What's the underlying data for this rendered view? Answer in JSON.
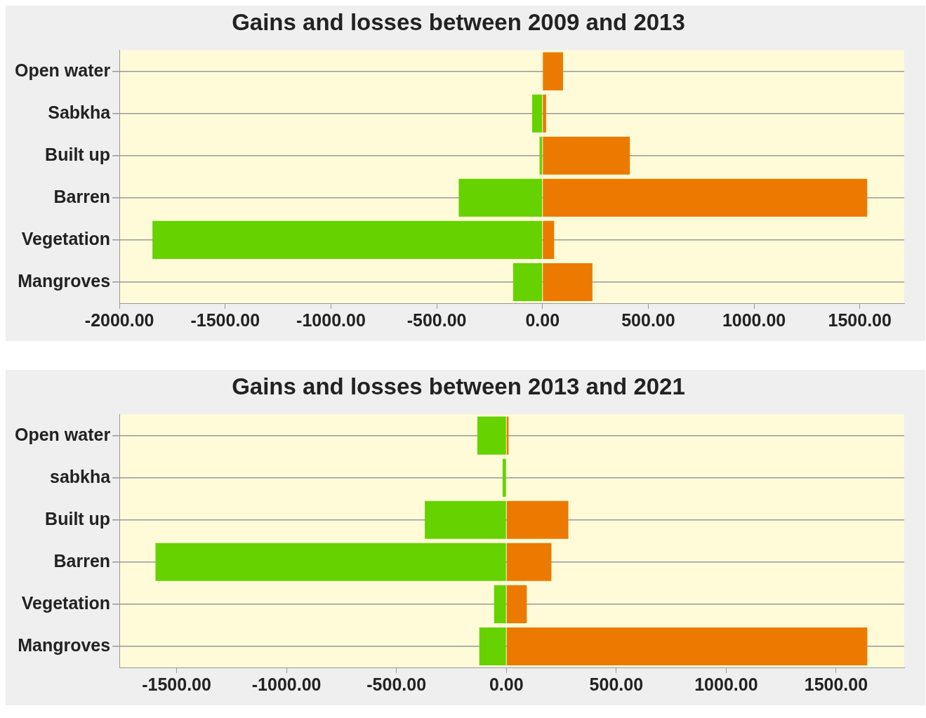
{
  "chart_data": [
    {
      "type": "bar",
      "title": "Gains and losses between 2009 and 2013",
      "orientation": "horizontal",
      "stacked": true,
      "grid": "y",
      "legend": false,
      "categories": [
        "Open water",
        "Sabkha",
        "Built up",
        "Barren",
        "Vegetation",
        "Mangroves"
      ],
      "series": [
        {
          "color": "#66d200",
          "values": [
            0,
            -49,
            -14,
            -396,
            -1844,
            -139
          ]
        },
        {
          "color": "#ec7a00",
          "values": [
            97,
            17,
            413,
            1535,
            55,
            236
          ]
        }
      ],
      "xlim": [
        -2000,
        1710
      ],
      "xticks": [
        {
          "value": -2000,
          "label": "-2000.00"
        },
        {
          "value": -1500,
          "label": "-1500.00"
        },
        {
          "value": -1000,
          "label": "-1000.00"
        },
        {
          "value": -500,
          "label": "-500.00"
        },
        {
          "value": 0,
          "label": "0.00"
        },
        {
          "value": 500,
          "label": "500.00"
        },
        {
          "value": 1000,
          "label": "1000.00"
        },
        {
          "value": 1500,
          "label": "1500.00"
        }
      ]
    },
    {
      "type": "bar",
      "title": "Gains and losses between 2013 and 2021",
      "orientation": "horizontal",
      "stacked": true,
      "grid": "y",
      "legend": false,
      "categories": [
        "Open water",
        "sabkha",
        "Built up",
        "Barren",
        "Vegetation",
        "Mangroves"
      ],
      "series": [
        {
          "color": "#66d200",
          "values": [
            -132,
            -17,
            -371,
            -1596,
            -56,
            -123
          ]
        },
        {
          "color": "#ec7a00",
          "values": [
            10,
            null,
            282,
            205,
            93,
            1642
          ]
        }
      ],
      "xlim": [
        -1760,
        1810
      ],
      "xticks": [
        {
          "value": -1500,
          "label": "-1500.00"
        },
        {
          "value": -1000,
          "label": "-1000.00"
        },
        {
          "value": -500,
          "label": "-500.00"
        },
        {
          "value": 0,
          "label": "0.00"
        },
        {
          "value": 500,
          "label": "500.00"
        },
        {
          "value": 1000,
          "label": "1000.00"
        },
        {
          "value": 1500,
          "label": "1500.00"
        }
      ]
    }
  ]
}
